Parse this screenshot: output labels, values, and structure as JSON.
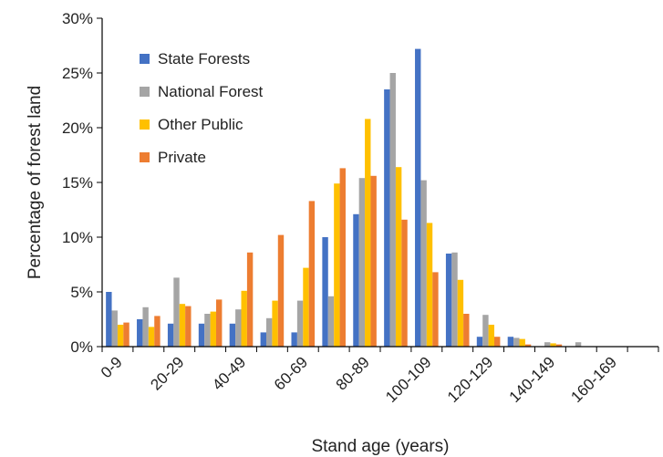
{
  "chart_data": {
    "type": "bar",
    "title": "",
    "xlabel": "Stand age (years)",
    "ylabel": "Percentage of forest land",
    "ylim": [
      0,
      30
    ],
    "yticks": [
      "0%",
      "5%",
      "10%",
      "15%",
      "20%",
      "25%",
      "30%"
    ],
    "grid": false,
    "legend_position": "top-left",
    "categories": [
      "0-9",
      "10-19",
      "20-29",
      "30-39",
      "40-49",
      "50-59",
      "60-69",
      "70-79",
      "80-89",
      "90-99",
      "100-109",
      "110-119",
      "120-129",
      "130-139",
      "140-149",
      "150-159",
      "160-169",
      "170-179"
    ],
    "tick_labels": [
      "0-9",
      "",
      "20-29",
      "",
      "40-49",
      "",
      "60-69",
      "",
      "80-89",
      "",
      "100-109",
      "",
      "120-129",
      "",
      "140-149",
      "",
      "160-169",
      ""
    ],
    "series": [
      {
        "name": "State Forests",
        "color": "#4472C4",
        "values": [
          5.0,
          2.5,
          2.1,
          2.1,
          2.1,
          1.3,
          1.3,
          10.0,
          12.1,
          23.5,
          27.2,
          8.5,
          0.9,
          0.9,
          0.0,
          0.0,
          0.0,
          0.0
        ]
      },
      {
        "name": "National Forest",
        "color": "#A5A5A5",
        "values": [
          3.3,
          3.6,
          6.3,
          3.0,
          3.4,
          2.6,
          4.2,
          4.6,
          15.4,
          25.0,
          15.2,
          8.6,
          2.9,
          0.8,
          0.4,
          0.4,
          0.0,
          0.0
        ]
      },
      {
        "name": "Other Public",
        "color": "#FFC000",
        "values": [
          2.0,
          1.8,
          3.9,
          3.2,
          5.1,
          4.2,
          7.2,
          14.9,
          20.8,
          16.4,
          11.3,
          6.1,
          2.0,
          0.7,
          0.3,
          0.0,
          0.0,
          0.0
        ]
      },
      {
        "name": "Private",
        "color": "#ED7D31",
        "values": [
          2.2,
          2.8,
          3.7,
          4.3,
          8.6,
          10.2,
          13.3,
          16.3,
          15.6,
          11.6,
          6.8,
          3.0,
          0.9,
          0.2,
          0.2,
          0.0,
          0.0,
          0.0
        ]
      }
    ]
  }
}
